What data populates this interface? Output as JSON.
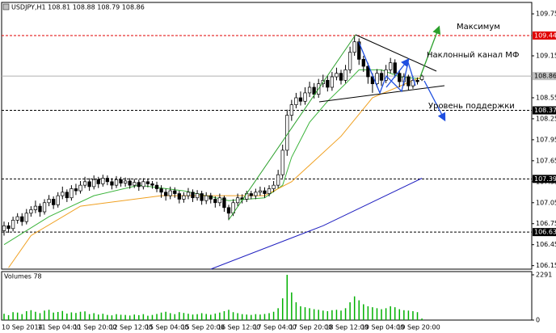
{
  "chart_data": [
    {
      "type": "candlestick",
      "title": "USDJPY,H1  108.81 108.88 108.79 108.86",
      "categories": [
        "10 Sep 2014",
        null,
        null,
        null,
        null,
        null,
        null,
        null,
        "11 Sep 04:00",
        null,
        null,
        null,
        null,
        null,
        null,
        null,
        "11 Sep 20:00",
        null,
        null,
        null,
        null,
        null,
        null,
        null,
        "12 Sep 12:00",
        null,
        null,
        null,
        null,
        null,
        null,
        null,
        "15 Sep 04:00",
        null,
        null,
        null,
        null,
        null,
        null,
        null,
        "15 Sep 20:00",
        null,
        null,
        null,
        null,
        null,
        null,
        null,
        "16 Sep 12:00",
        null,
        null,
        null,
        null,
        null,
        null,
        null,
        "17 Sep 04:00",
        null,
        null,
        null,
        null,
        null,
        null,
        null,
        "17 Sep 20:00",
        null,
        null,
        null,
        null,
        null,
        null,
        null,
        "18 Sep 12:00",
        null,
        null,
        null,
        null,
        null,
        null,
        null,
        "19 Sep 04:00",
        null,
        null,
        null,
        null,
        null,
        null,
        null,
        "19 Sep 20:00",
        null,
        null,
        null,
        null,
        null
      ],
      "open": [
        106.65,
        106.72,
        106.68,
        106.8,
        106.85,
        106.78,
        106.9,
        106.95,
        107.0,
        106.92,
        107.05,
        107.1,
        107.02,
        107.15,
        107.2,
        107.12,
        107.25,
        107.22,
        107.3,
        107.35,
        107.28,
        107.38,
        107.32,
        107.4,
        107.35,
        107.3,
        107.38,
        107.33,
        107.36,
        107.3,
        107.34,
        107.28,
        107.35,
        107.32,
        107.3,
        107.25,
        107.2,
        107.15,
        107.22,
        107.18,
        107.1,
        107.15,
        107.2,
        107.12,
        107.18,
        107.08,
        107.15,
        107.1,
        107.05,
        107.12,
        106.98,
        106.9,
        107.05,
        107.12,
        107.1,
        107.18,
        107.15,
        107.2,
        107.22,
        107.18,
        107.25,
        107.3,
        107.45,
        107.8,
        108.3,
        108.45,
        108.55,
        108.5,
        108.62,
        108.7,
        108.6,
        108.75,
        108.8,
        108.7,
        108.85,
        108.9,
        108.8,
        108.95,
        109.2,
        109.35,
        109.1,
        109.0,
        108.85,
        108.75,
        108.9,
        108.8,
        108.95,
        109.05,
        108.9,
        108.78,
        108.85,
        108.72,
        108.8,
        108.81
      ],
      "high": [
        106.78,
        106.77,
        106.85,
        106.9,
        106.9,
        106.96,
        107.0,
        107.08,
        107.04,
        107.1,
        107.16,
        107.14,
        107.2,
        107.28,
        107.24,
        107.3,
        107.32,
        107.36,
        107.42,
        107.4,
        107.44,
        107.42,
        107.45,
        107.44,
        107.4,
        107.43,
        107.42,
        107.41,
        107.4,
        107.39,
        107.38,
        107.4,
        107.39,
        107.36,
        107.35,
        107.3,
        107.25,
        107.28,
        107.27,
        107.22,
        107.2,
        107.26,
        107.24,
        107.23,
        107.22,
        107.2,
        107.19,
        107.14,
        107.18,
        107.15,
        107.02,
        107.1,
        107.18,
        107.17,
        107.22,
        107.22,
        107.25,
        107.28,
        107.27,
        107.3,
        107.36,
        107.52,
        107.88,
        108.38,
        108.52,
        108.62,
        108.64,
        108.7,
        108.78,
        108.76,
        108.82,
        108.88,
        108.86,
        108.92,
        108.98,
        108.95,
        109.02,
        109.28,
        109.44,
        109.4,
        109.15,
        109.05,
        108.9,
        108.96,
        108.95,
        109.02,
        109.12,
        109.1,
        108.94,
        108.9,
        108.88,
        108.86,
        108.84,
        108.88
      ],
      "low": [
        106.58,
        106.62,
        106.64,
        106.75,
        106.72,
        106.74,
        106.85,
        106.9,
        106.85,
        106.88,
        107.0,
        106.96,
        106.98,
        107.1,
        107.06,
        107.08,
        107.16,
        107.18,
        107.26,
        107.22,
        107.24,
        107.26,
        107.28,
        107.3,
        107.24,
        107.26,
        107.28,
        107.28,
        107.25,
        107.26,
        107.22,
        107.24,
        107.27,
        107.25,
        107.2,
        107.12,
        107.08,
        107.1,
        107.12,
        107.04,
        107.05,
        107.1,
        107.06,
        107.08,
        107.02,
        107.03,
        107.04,
        106.98,
        107.0,
        106.92,
        106.8,
        106.86,
        107.0,
        107.04,
        107.06,
        107.1,
        107.1,
        107.15,
        107.12,
        107.14,
        107.2,
        107.26,
        107.4,
        107.72,
        108.22,
        108.4,
        108.44,
        108.45,
        108.56,
        108.54,
        108.55,
        108.7,
        108.64,
        108.65,
        108.8,
        108.74,
        108.76,
        108.9,
        109.15,
        109.02,
        108.92,
        108.75,
        108.62,
        108.7,
        108.72,
        108.76,
        108.9,
        108.84,
        108.7,
        108.72,
        108.66,
        108.68,
        108.74,
        108.79
      ],
      "close": [
        106.72,
        106.68,
        106.8,
        106.85,
        106.78,
        106.9,
        106.95,
        107.0,
        106.92,
        107.05,
        107.1,
        107.02,
        107.15,
        107.2,
        107.12,
        107.25,
        107.22,
        107.3,
        107.35,
        107.28,
        107.38,
        107.32,
        107.4,
        107.35,
        107.3,
        107.38,
        107.33,
        107.36,
        107.3,
        107.34,
        107.28,
        107.35,
        107.32,
        107.3,
        107.25,
        107.2,
        107.15,
        107.22,
        107.18,
        107.1,
        107.15,
        107.2,
        107.12,
        107.18,
        107.08,
        107.15,
        107.1,
        107.05,
        107.12,
        106.98,
        106.9,
        107.05,
        107.12,
        107.1,
        107.18,
        107.15,
        107.2,
        107.22,
        107.18,
        107.25,
        107.3,
        107.45,
        107.8,
        108.3,
        108.45,
        108.55,
        108.5,
        108.62,
        108.7,
        108.6,
        108.75,
        108.8,
        108.7,
        108.85,
        108.9,
        108.8,
        108.95,
        109.2,
        109.35,
        109.1,
        109.0,
        108.85,
        108.75,
        108.9,
        108.8,
        108.95,
        109.05,
        108.9,
        108.78,
        108.85,
        108.72,
        108.8,
        108.78,
        108.86
      ],
      "bull_color": "#ffffff",
      "bear_color": "#000000",
      "outline_color": "#000000",
      "ylim": [
        106.1,
        109.89
      ],
      "yticks": [
        106.15,
        106.45,
        106.75,
        107.05,
        107.35,
        107.65,
        107.95,
        108.25,
        108.55,
        109.15,
        109.75
      ],
      "levels": [
        {
          "value": 109.44,
          "color": "#e00000",
          "label_color": "#e00000"
        },
        {
          "value": 108.86,
          "color": "#b0b0b0",
          "label_color": "#c0c0c0"
        },
        {
          "value": 108.37,
          "color": "#000000",
          "label_color": "#000000"
        },
        {
          "value": 107.39,
          "color": "#000000",
          "label_color": "#000000"
        },
        {
          "value": 106.63,
          "color": "#000000",
          "label_color": "#000000"
        }
      ],
      "overlays": [
        {
          "color": "#3cb43c",
          "x": [
            0,
            10,
            20,
            30,
            40,
            50,
            58,
            62,
            64,
            68,
            72,
            76,
            79,
            84,
            88,
            93
          ],
          "values": [
            106.45,
            106.85,
            107.15,
            107.3,
            107.22,
            107.08,
            107.12,
            107.3,
            107.7,
            108.2,
            108.5,
            108.75,
            108.95,
            108.95,
            108.85,
            108.82
          ]
        },
        {
          "color": "#f0a020",
          "x": [
            1,
            6,
            17,
            35,
            58,
            64,
            75,
            82,
            93
          ],
          "values": [
            106.12,
            106.58,
            107.0,
            107.15,
            107.15,
            107.35,
            108.0,
            108.55,
            108.85
          ]
        },
        {
          "color": "#2020c0",
          "x": [
            46,
            71,
            93
          ],
          "values": [
            106.1,
            106.72,
            107.4
          ]
        }
      ],
      "annotations": [
        "Максимум",
        "Наклонный канал МФ",
        "Уровень поддержки"
      ]
    },
    {
      "type": "volume",
      "title": "Volumes 78",
      "color": "#00b000",
      "values": [
        320,
        250,
        400,
        380,
        300,
        450,
        500,
        420,
        350,
        480,
        520,
        380,
        410,
        460,
        330,
        390,
        360,
        420,
        440,
        300,
        350,
        280,
        320,
        260,
        240,
        300,
        270,
        260,
        230,
        280,
        250,
        300,
        220,
        260,
        310,
        380,
        420,
        350,
        300,
        400,
        360,
        320,
        280,
        300,
        350,
        310,
        270,
        330,
        380,
        450,
        520,
        400,
        350,
        300,
        280,
        260,
        300,
        280,
        310,
        350,
        420,
        600,
        1100,
        2291,
        1400,
        900,
        700,
        650,
        600,
        550,
        520,
        480,
        450,
        500,
        520,
        480,
        600,
        900,
        1200,
        1000,
        800,
        700,
        650,
        600,
        550,
        600,
        700,
        650,
        550,
        500,
        480,
        450,
        400,
        78
      ],
      "ylim": [
        0,
        2291
      ],
      "yticks": [
        0,
        2291
      ]
    }
  ]
}
